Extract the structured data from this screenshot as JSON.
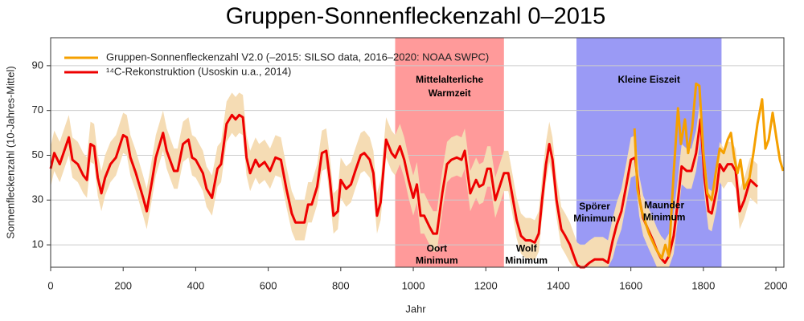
{
  "chart_data": {
    "type": "line",
    "title": "Gruppen-Sonnenfleckenzahl 0–2015",
    "x_label": "Jahr",
    "y_label": "Sonnenfleckenzahl (10-Jahres-Mittel)",
    "xlim": [
      0,
      2022
    ],
    "ylim": [
      0,
      102.5
    ],
    "xticks": [
      0,
      200,
      400,
      600,
      800,
      1000,
      1200,
      1400,
      1600,
      1800,
      2000
    ],
    "yticks": [
      10,
      30,
      50,
      70,
      90
    ],
    "grid": true,
    "legend": "top-left",
    "regions": [
      {
        "from": 950,
        "to": 1250,
        "label": [
          "Mittelalterliche",
          "Warmzeit"
        ],
        "color": "#ff9a9a"
      },
      {
        "from": 1450,
        "to": 1850,
        "label": [
          "Kleine Eiszeit"
        ],
        "color": "#9a9af5"
      }
    ],
    "annotations": [
      {
        "x": 1065,
        "y": 8.2,
        "lines": [
          "Oort",
          "Minimum"
        ]
      },
      {
        "x": 1312,
        "y": 8.2,
        "lines": [
          "Wolf",
          "Minimum"
        ]
      },
      {
        "x": 1500,
        "y": 27,
        "lines": [
          "Spörer",
          "Minimum"
        ]
      },
      {
        "x": 1692,
        "y": 27.5,
        "lines": [
          "Maunder",
          "Minimum"
        ]
      }
    ],
    "series": [
      {
        "name": "Gruppen-Sonnenfleckenzahl V2.0 (–2015: SILSO data, 2016–2020: NOAA SWPC)",
        "color": "#f5a000",
        "x": [
          1610,
          1618,
          1630,
          1650,
          1670,
          1685,
          1695,
          1705,
          1712,
          1718,
          1730,
          1738,
          1749,
          1758,
          1769,
          1780,
          1789,
          1800,
          1811,
          1823,
          1834,
          1845,
          1856,
          1867,
          1876,
          1885,
          1894,
          1902,
          1913,
          1927,
          1938,
          1949,
          1962,
          1971,
          1980,
          1991,
          2002,
          2011,
          2020
        ],
        "values": [
          62,
          35,
          25,
          15,
          8,
          4,
          10,
          5,
          25,
          42,
          71,
          55,
          66,
          51,
          62,
          82,
          81,
          51,
          33,
          30,
          42,
          53,
          51,
          57,
          60,
          49,
          42,
          48,
          35,
          40,
          51,
          64,
          75,
          53,
          57,
          69,
          57,
          48,
          43
        ]
      },
      {
        "name": "¹⁴C-Rekonstruktion (Usoskin u.a., 2014)",
        "color": "#ee0000",
        "band_color": "#f5dcb4",
        "x": [
          0,
          10,
          25,
          50,
          60,
          75,
          90,
          100,
          110,
          120,
          130,
          140,
          150,
          165,
          180,
          200,
          210,
          220,
          235,
          255,
          265,
          280,
          290,
          310,
          320,
          340,
          350,
          365,
          380,
          390,
          400,
          420,
          430,
          445,
          460,
          470,
          485,
          500,
          510,
          520,
          530,
          540,
          550,
          565,
          575,
          590,
          605,
          620,
          635,
          650,
          665,
          675,
          690,
          700,
          710,
          720,
          735,
          748,
          760,
          770,
          780,
          792,
          800,
          815,
          828,
          840,
          855,
          865,
          880,
          890,
          900,
          910,
          925,
          940,
          950,
          963,
          975,
          987,
          1000,
          1010,
          1020,
          1030,
          1045,
          1055,
          1065,
          1080,
          1093,
          1105,
          1120,
          1133,
          1142,
          1157,
          1173,
          1182,
          1193,
          1204,
          1213,
          1226,
          1240,
          1250,
          1262,
          1273,
          1285,
          1297,
          1310,
          1323,
          1335,
          1346,
          1355,
          1366,
          1375,
          1384,
          1395,
          1408,
          1419,
          1432,
          1443,
          1452,
          1461,
          1472,
          1486,
          1500,
          1523,
          1537,
          1550,
          1561,
          1574,
          1588,
          1600,
          1612,
          1623,
          1634,
          1647,
          1661,
          1672,
          1683,
          1694,
          1705,
          1718,
          1730,
          1740,
          1754,
          1767,
          1780,
          1792,
          1803,
          1814,
          1823,
          1836,
          1845,
          1856,
          1867,
          1878,
          1889,
          1900,
          1913,
          1929,
          1949
        ],
        "values": [
          44,
          51,
          46,
          58,
          48,
          46,
          41,
          39,
          55,
          54,
          40,
          33,
          40,
          46,
          49,
          59,
          58,
          49,
          42,
          31,
          25,
          39,
          49,
          60,
          52,
          43,
          43,
          55,
          57,
          49,
          48,
          42,
          35,
          31,
          44,
          46,
          64,
          68,
          66,
          68,
          67,
          49,
          42,
          48,
          45,
          47,
          43,
          49,
          48,
          35,
          24,
          20,
          20,
          20,
          28,
          28,
          36,
          51,
          52,
          39,
          23,
          25,
          39,
          35,
          37,
          43,
          50,
          51,
          48,
          42,
          23,
          29,
          57,
          51,
          49,
          54,
          48,
          39,
          31,
          37,
          23,
          23,
          18,
          15,
          15,
          33,
          46,
          48,
          49,
          48,
          52,
          33,
          39,
          36,
          37,
          44,
          44,
          30,
          37,
          42,
          42,
          32,
          21,
          14,
          12,
          12,
          11,
          15,
          30,
          46,
          55,
          48,
          30,
          17,
          14,
          10,
          5,
          1,
          0,
          0,
          2,
          3.5,
          3.5,
          2,
          12,
          19,
          25,
          37,
          48,
          49,
          31,
          22,
          17,
          12,
          7.5,
          4,
          2,
          5,
          14,
          30,
          45,
          43,
          43,
          51,
          66,
          40,
          25,
          24,
          34,
          46,
          43,
          46,
          46,
          43,
          25,
          30,
          39,
          36
        ],
        "lower": [
          36,
          43,
          38,
          50,
          40,
          38,
          33,
          31,
          47,
          46,
          32,
          25,
          32,
          38,
          41,
          51,
          50,
          41,
          34,
          23,
          17,
          31,
          41,
          52,
          44,
          35,
          35,
          47,
          49,
          41,
          40,
          34,
          27,
          23,
          36,
          38,
          56,
          60,
          58,
          60,
          59,
          41,
          34,
          40,
          37,
          39,
          35,
          41,
          40,
          27,
          16,
          12,
          12,
          12,
          20,
          20,
          28,
          43,
          44,
          31,
          15,
          17,
          31,
          27,
          29,
          35,
          42,
          43,
          40,
          34,
          15,
          21,
          49,
          43,
          41,
          46,
          40,
          31,
          23,
          29,
          15,
          15,
          10,
          7,
          7,
          25,
          38,
          40,
          41,
          40,
          44,
          25,
          31,
          28,
          29,
          36,
          36,
          22,
          29,
          34,
          34,
          24,
          13,
          6,
          4,
          4,
          3,
          7,
          22,
          38,
          47,
          40,
          22,
          9,
          6,
          2,
          0,
          0,
          0,
          0,
          0,
          0,
          0,
          0,
          4,
          11,
          17,
          29,
          40,
          41,
          23,
          14,
          9,
          4,
          0,
          0,
          0,
          0,
          6,
          22,
          37,
          35,
          35,
          43,
          58,
          32,
          17,
          16,
          26,
          38,
          35,
          38,
          38,
          35,
          17,
          22,
          31,
          28
        ],
        "upper": [
          54,
          61,
          56,
          68,
          58,
          56,
          51,
          49,
          65,
          64,
          50,
          43,
          50,
          56,
          59,
          69,
          68,
          59,
          52,
          41,
          35,
          49,
          59,
          70,
          62,
          53,
          53,
          65,
          67,
          59,
          58,
          52,
          45,
          41,
          54,
          56,
          74,
          78,
          76,
          78,
          77,
          59,
          52,
          58,
          55,
          57,
          53,
          59,
          58,
          45,
          34,
          30,
          30,
          30,
          38,
          38,
          46,
          61,
          62,
          49,
          33,
          35,
          49,
          45,
          47,
          53,
          60,
          61,
          58,
          52,
          33,
          39,
          67,
          61,
          59,
          64,
          58,
          49,
          41,
          47,
          33,
          33,
          28,
          25,
          25,
          43,
          56,
          58,
          59,
          58,
          62,
          43,
          49,
          46,
          47,
          54,
          54,
          40,
          47,
          52,
          52,
          42,
          31,
          24,
          22,
          22,
          21,
          25,
          40,
          56,
          65,
          58,
          40,
          27,
          24,
          20,
          15,
          11,
          10,
          10,
          12,
          13.5,
          13.5,
          12,
          22,
          29,
          35,
          47,
          58,
          59,
          41,
          32,
          27,
          22,
          17.5,
          14,
          12,
          15,
          24,
          40,
          55,
          53,
          53,
          61,
          76,
          50,
          35,
          34,
          44,
          56,
          53,
          56,
          56,
          53,
          35,
          40,
          49,
          46
        ]
      }
    ]
  }
}
